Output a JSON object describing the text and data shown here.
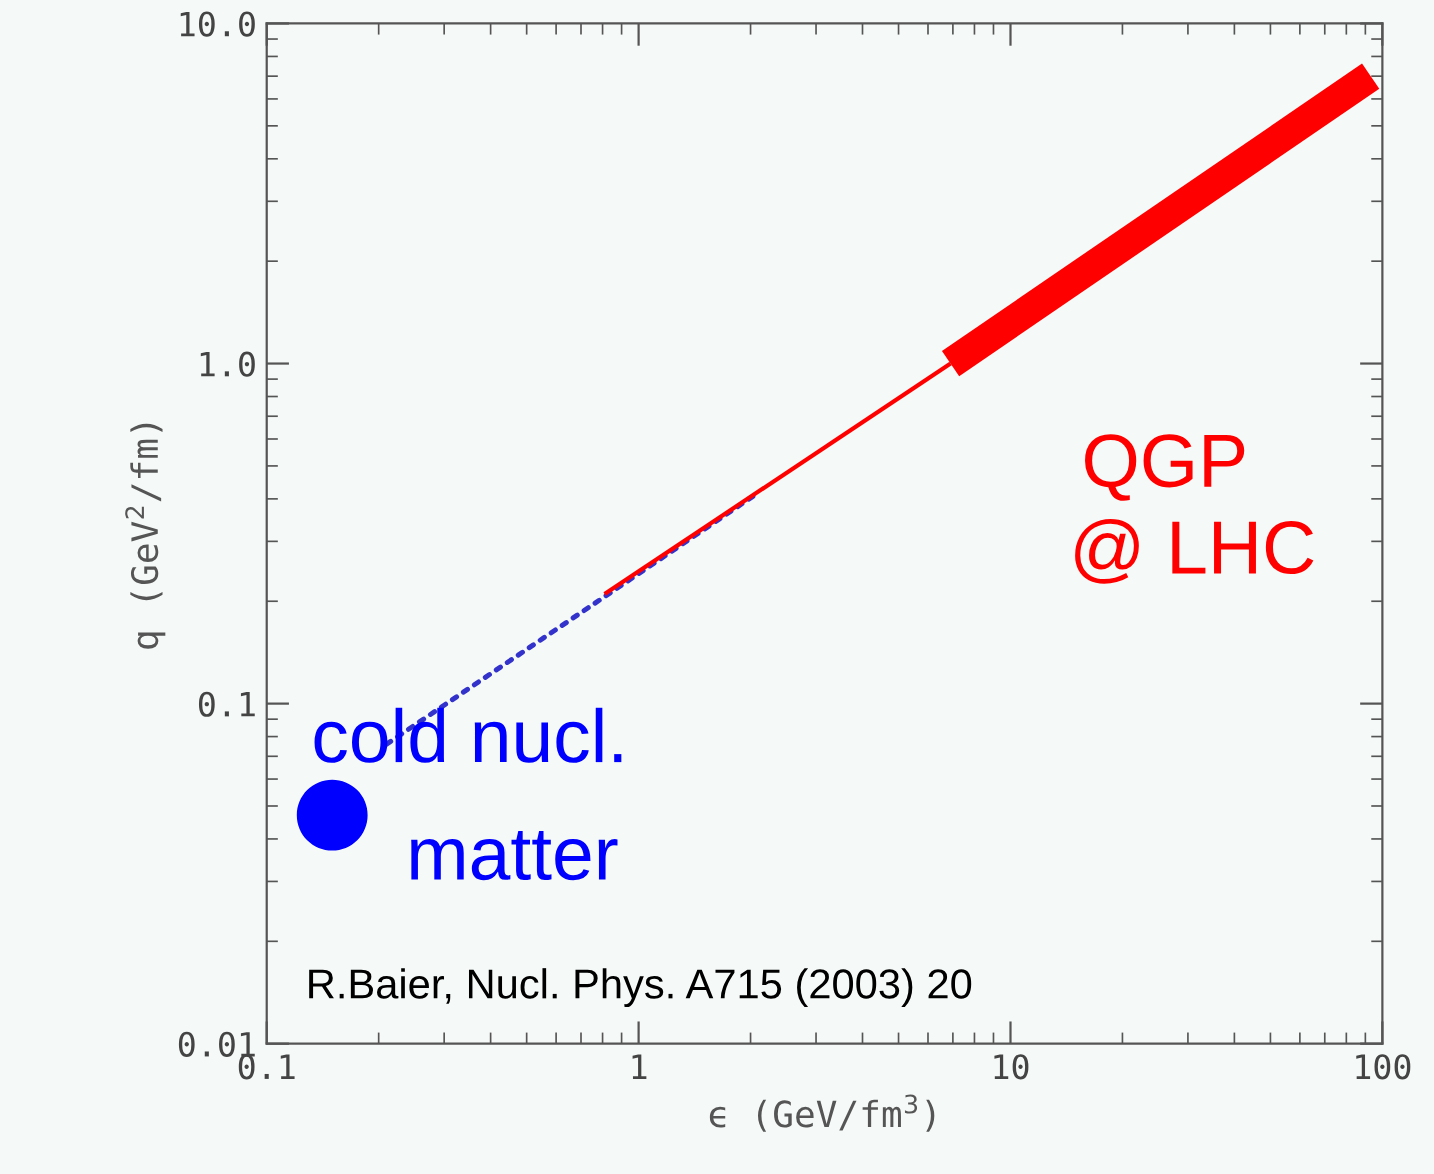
{
  "chart_data": {
    "type": "line",
    "xlabel": "ϵ (GeV/fm$^{3}$)",
    "ylabel": "q (GeV$^{2}$/fm)",
    "log": "xy",
    "xlim": [
      0.1,
      100
    ],
    "ylim": [
      0.01,
      10
    ],
    "xticks": [
      0.1,
      1,
      10,
      100
    ],
    "yticks": [
      0.01,
      0.1,
      {
        "value": 1,
        "label": "1.0"
      },
      {
        "value": 10,
        "label": "10.0"
      }
    ],
    "grid": false,
    "series": [
      {
        "type": "scatter",
        "name": "cold nucl. matter",
        "color": "#0000ff",
        "marker": "circle",
        "x": [
          0.15
        ],
        "values": [
          0.047
        ]
      },
      {
        "color": "#3333cc",
        "line_style": "dotted",
        "x": [
          0.21,
          2.05
        ],
        "values": [
          0.076,
          0.41
        ]
      },
      {
        "color": "#ff0000",
        "line_style": "solid",
        "x": [
          0.81,
          6.9
        ],
        "values": [
          0.21,
          1.0
        ]
      },
      {
        "name": "QGP @ LHC",
        "color": "#ff0000",
        "line_style": "solid",
        "x": [
          6.9,
          93
        ],
        "values": [
          1.0,
          7.0
        ]
      }
    ],
    "annotations": [
      "R.Baier, Nucl. Phys. A715 (2003) 20"
    ]
  }
}
